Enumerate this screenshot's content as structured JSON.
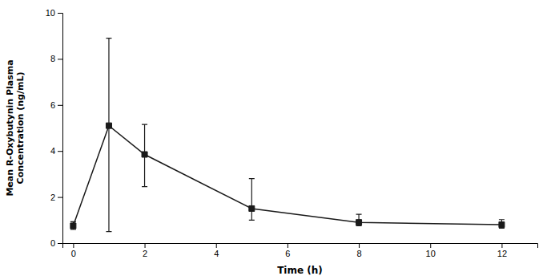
{
  "chart_data": {
    "type": "line",
    "xlabel": "Time (h)",
    "ylabel": "Mean R-Oxybutynin Plasma\nConcentration (ng/mL)",
    "x": [
      0,
      1,
      2,
      5,
      8,
      12
    ],
    "values": [
      0.75,
      5.1,
      3.85,
      1.5,
      0.9,
      0.8
    ],
    "error_upper": [
      0.18,
      3.8,
      1.3,
      1.3,
      0.35,
      0.22
    ],
    "error_lower": [
      0.15,
      4.6,
      1.4,
      0.5,
      0.15,
      0.15
    ],
    "xlim": [
      -0.3,
      13
    ],
    "ylim": [
      0,
      10
    ],
    "xticks": [
      0,
      2,
      4,
      6,
      8,
      10,
      12
    ],
    "yticks": [
      0,
      2,
      4,
      6,
      8,
      10
    ],
    "color": "#1a1a1a",
    "marker": "square",
    "grid": false
  }
}
